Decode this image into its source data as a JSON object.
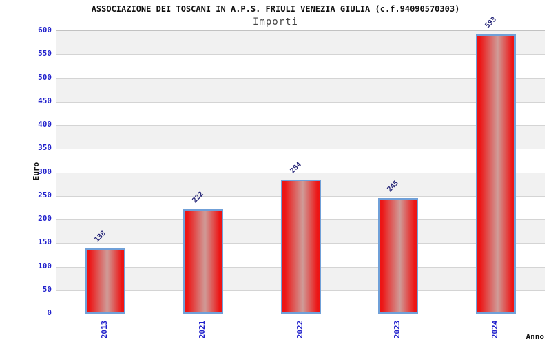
{
  "chart_data": {
    "type": "bar",
    "title": "ASSOCIAZIONE DEI TOSCANI IN A.P.S. FRIULI VENEZIA GIULIA (c.f.94090570303)",
    "subtitle": "Importi",
    "xlabel": "Anno",
    "ylabel": "Euro",
    "categories": [
      "2013",
      "2021",
      "2022",
      "2023",
      "2024"
    ],
    "values": [
      138,
      222,
      284,
      245,
      593
    ],
    "ylim": [
      0,
      600
    ],
    "yticks": [
      0,
      50,
      100,
      150,
      200,
      250,
      300,
      350,
      400,
      450,
      500,
      550,
      600
    ],
    "legend": "none",
    "grid": "horizontal lines every 50 with alternating shaded bands",
    "colors": {
      "bar_fill_edge": "#ed1515",
      "bar_fill_center": "#cf9c98",
      "bar_border": "#70a0d8",
      "axis_tick_label": "#2222cc",
      "value_label": "#252577",
      "title": "#111111",
      "subtitle": "#444444",
      "band_shade": "#f1f1f1",
      "gridline": "#d4d4d4",
      "plot_border": "#c2c2c2"
    }
  }
}
